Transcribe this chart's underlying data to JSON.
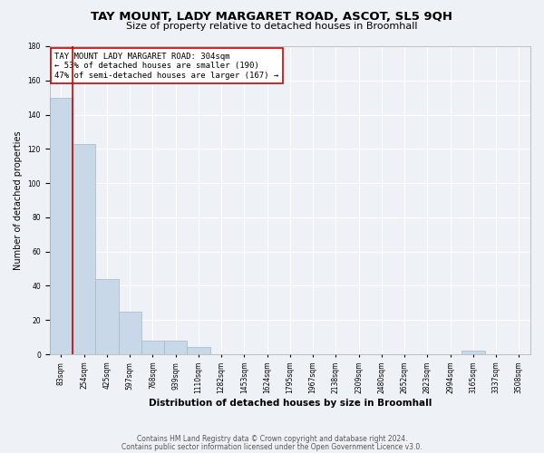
{
  "title": "TAY MOUNT, LADY MARGARET ROAD, ASCOT, SL5 9QH",
  "subtitle": "Size of property relative to detached houses in Broomhall",
  "xlabel": "Distribution of detached houses by size in Broomhall",
  "ylabel": "Number of detached properties",
  "bin_labels": [
    "83sqm",
    "254sqm",
    "425sqm",
    "597sqm",
    "768sqm",
    "939sqm",
    "1110sqm",
    "1282sqm",
    "1453sqm",
    "1624sqm",
    "1795sqm",
    "1967sqm",
    "2138sqm",
    "2309sqm",
    "2480sqm",
    "2652sqm",
    "2823sqm",
    "2994sqm",
    "3165sqm",
    "3337sqm",
    "3508sqm"
  ],
  "bin_values": [
    150,
    123,
    44,
    25,
    8,
    8,
    4,
    0,
    0,
    0,
    0,
    0,
    0,
    0,
    0,
    0,
    0,
    0,
    2,
    0,
    0
  ],
  "bar_color": "#c8d8e8",
  "bar_edge_color": "#a0b8cc",
  "vline_color": "#cc0000",
  "vline_position": 0.5,
  "annotation_text": "TAY MOUNT LADY MARGARET ROAD: 304sqm\n← 53% of detached houses are smaller (190)\n47% of semi-detached houses are larger (167) →",
  "annotation_box_color": "#ffffff",
  "annotation_box_edge_color": "#cc0000",
  "ylim": [
    0,
    180
  ],
  "yticks": [
    0,
    20,
    40,
    60,
    80,
    100,
    120,
    140,
    160,
    180
  ],
  "footer1": "Contains HM Land Registry data © Crown copyright and database right 2024.",
  "footer2": "Contains public sector information licensed under the Open Government Licence v3.0.",
  "background_color": "#eef2f6",
  "grid_color": "#ffffff",
  "title_fontsize": 9.5,
  "subtitle_fontsize": 8,
  "xlabel_fontsize": 7.5,
  "ylabel_fontsize": 7,
  "tick_fontsize": 5.5,
  "annotation_fontsize": 6.5,
  "footer_fontsize": 5.5
}
